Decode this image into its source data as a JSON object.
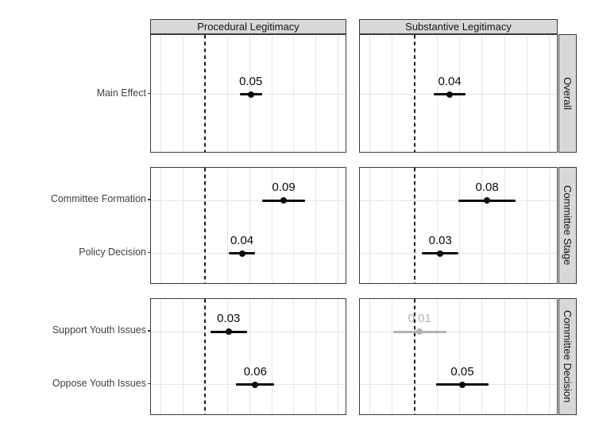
{
  "chart_data": {
    "type": "scatter",
    "subtype": "forest_plot_pointrange",
    "title": "",
    "xlabel": "",
    "ylabel": "",
    "facet_columns": [
      "Procedural Legitimacy",
      "Substantive Legitimacy"
    ],
    "facet_rows": [
      "Overall",
      "Committee Stage",
      "Committee Decision"
    ],
    "x_axis": {
      "range": [
        -0.061,
        0.16
      ],
      "gridline_step": 0.025,
      "reference_line": 0,
      "reference_line_style": "dashed",
      "tick_labels_shown": false
    },
    "legend": "none",
    "colors": {
      "significant": "#0a0a0a",
      "not_significant": "#b3b3b3",
      "strip_fill": "#d8d8d8",
      "strip_border": "#3a3a3a",
      "panel_border": "#3a3a3a",
      "gridline": "#e6e6e6",
      "axis_text": "#404040"
    },
    "rows": [
      {
        "strip_label": "Overall",
        "categories": [
          "Main Effect"
        ],
        "panels": {
          "procedural": [
            {
              "category": "Main Effect",
              "label": "0.05",
              "estimate": 0.05,
              "ci_low": 0.039,
              "ci_high": 0.064,
              "significant": true
            }
          ],
          "substantive": [
            {
              "category": "Main Effect",
              "label": "0.04",
              "estimate": 0.04,
              "ci_low": 0.021,
              "ci_high": 0.057,
              "significant": true
            }
          ]
        }
      },
      {
        "strip_label": "Committee Stage",
        "categories": [
          "Committee Formation",
          "Policy Decision"
        ],
        "panels": {
          "procedural": [
            {
              "category": "Committee Formation",
              "label": "0.09",
              "estimate": 0.09,
              "ci_low": 0.064,
              "ci_high": 0.113,
              "significant": true
            },
            {
              "category": "Policy Decision",
              "label": "0.04",
              "estimate": 0.04,
              "ci_low": 0.027,
              "ci_high": 0.056,
              "significant": true
            }
          ],
          "substantive": [
            {
              "category": "Committee Formation",
              "label": "0.08",
              "estimate": 0.08,
              "ci_low": 0.049,
              "ci_high": 0.112,
              "significant": true
            },
            {
              "category": "Policy Decision",
              "label": "0.03",
              "estimate": 0.03,
              "ci_low": 0.008,
              "ci_high": 0.049,
              "significant": true
            }
          ]
        }
      },
      {
        "strip_label": "Committee Decision",
        "categories": [
          "Support Youth Issues",
          "Oppose Youth Issues"
        ],
        "panels": {
          "procedural": [
            {
              "category": "Support Youth Issues",
              "label": "0.03",
              "estimate": 0.03,
              "ci_low": 0.006,
              "ci_high": 0.047,
              "significant": true
            },
            {
              "category": "Oppose Youth Issues",
              "label": "0.06",
              "estimate": 0.06,
              "ci_low": 0.035,
              "ci_high": 0.078,
              "significant": true
            }
          ],
          "substantive": [
            {
              "category": "Support Youth Issues",
              "label": "0.01",
              "estimate": 0.01,
              "ci_low": -0.024,
              "ci_high": 0.035,
              "significant": false
            },
            {
              "category": "Oppose Youth Issues",
              "label": "0.05",
              "estimate": 0.05,
              "ci_low": 0.024,
              "ci_high": 0.082,
              "significant": true
            }
          ]
        }
      }
    ]
  }
}
